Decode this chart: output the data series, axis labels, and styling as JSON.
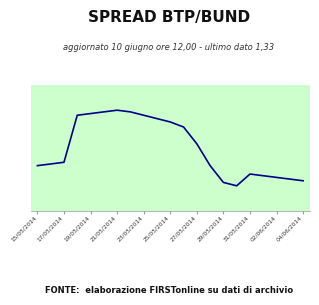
{
  "title": "SPREAD BTP/BUND",
  "subtitle": "aggiornato 10 giugno ore 12,00 - ultimo dato 1,33",
  "fonte": "FONTE:  elaborazione FIRSTonline su dati di archivio",
  "x_labels": [
    "15/05/2014",
    "17/05/2014",
    "19/05/2014",
    "21/05/2014",
    "23/05/2014",
    "25/05/2014",
    "27/05/2014",
    "29/05/2014",
    "31/05/2014",
    "02/06/2014",
    "04/06/2014"
  ],
  "line_color": "#00008B",
  "bg_color": "#ccffcc",
  "outer_bg": "#ffffff",
  "ylim": [
    1.15,
    1.9
  ],
  "grid_color": "#aaddaa",
  "title_fontsize": 11,
  "subtitle_fontsize": 6,
  "fonte_fontsize": 6,
  "x_raw": [
    0,
    1,
    2,
    3,
    4,
    5,
    6,
    7,
    8,
    9,
    10,
    11,
    12,
    13,
    14,
    15,
    16,
    17,
    18,
    19,
    20
  ],
  "y_raw": [
    1.42,
    1.43,
    1.44,
    1.72,
    1.73,
    1.74,
    1.75,
    1.74,
    1.72,
    1.7,
    1.68,
    1.65,
    1.55,
    1.42,
    1.32,
    1.3,
    1.37,
    1.36,
    1.35,
    1.34,
    1.33
  ]
}
